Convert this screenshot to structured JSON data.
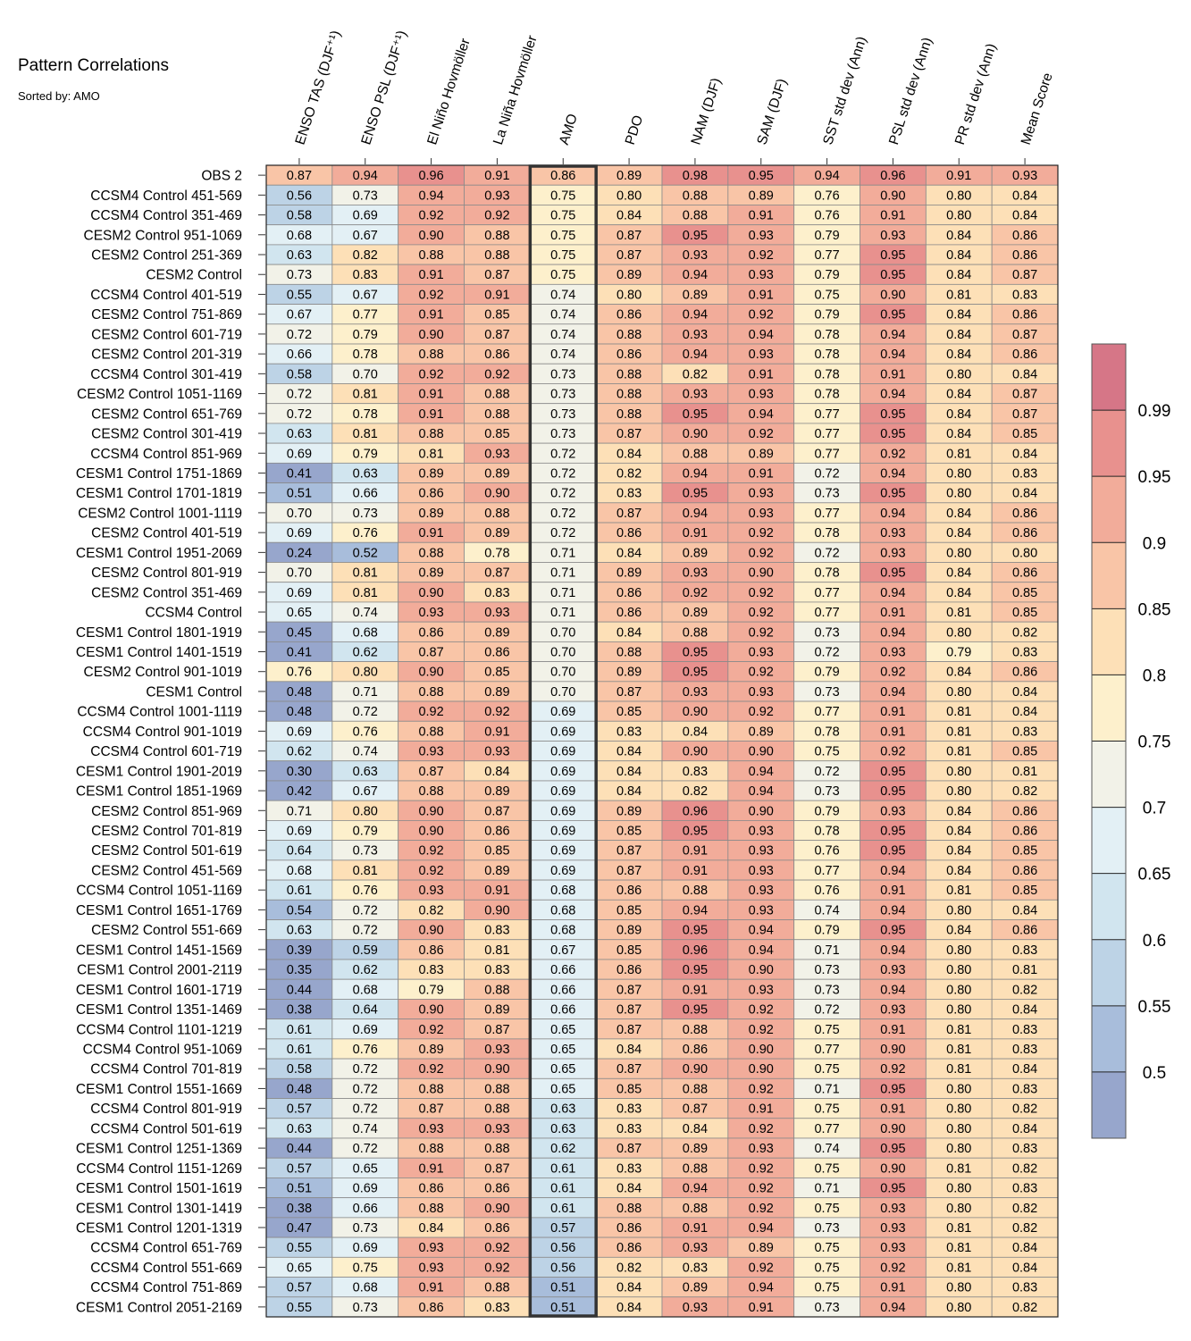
{
  "chart_data": {
    "type": "heatmap",
    "title": "Pattern Correlations",
    "subtitle": "Sorted by: AMO",
    "highlight_column": "AMO",
    "columns": [
      "ENSO TAS (DJF⁺¹)",
      "ENSO PSL (DJF⁺¹)",
      "El Niño Hovmöller",
      "La Niña Hovmöller",
      "AMO",
      "PDO",
      "NAM (DJF)",
      "SAM (DJF)",
      "SST std dev (Ann)",
      "PSL std dev (Ann)",
      "PR std dev (Ann)",
      "Mean Score"
    ],
    "rows": [
      {
        "label": "OBS 2",
        "values": [
          "0.87",
          "0.94",
          "0.96",
          "0.91",
          "0.86",
          "0.89",
          "0.98",
          "0.95",
          "0.94",
          "0.96",
          "0.91",
          "0.93"
        ]
      },
      {
        "label": "CCSM4 Control 451-569",
        "values": [
          "0.56",
          "0.73",
          "0.94",
          "0.93",
          "0.75",
          "0.80",
          "0.88",
          "0.89",
          "0.76",
          "0.90",
          "0.80",
          "0.84"
        ]
      },
      {
        "label": "CCSM4 Control 351-469",
        "values": [
          "0.58",
          "0.69",
          "0.92",
          "0.92",
          "0.75",
          "0.84",
          "0.88",
          "0.91",
          "0.76",
          "0.91",
          "0.80",
          "0.84"
        ]
      },
      {
        "label": "CESM2 Control 951-1069",
        "values": [
          "0.68",
          "0.67",
          "0.90",
          "0.88",
          "0.75",
          "0.87",
          "0.95",
          "0.93",
          "0.79",
          "0.93",
          "0.84",
          "0.86"
        ]
      },
      {
        "label": "CESM2 Control 251-369",
        "values": [
          "0.63",
          "0.82",
          "0.88",
          "0.88",
          "0.75",
          "0.87",
          "0.93",
          "0.92",
          "0.77",
          "0.95",
          "0.84",
          "0.86"
        ]
      },
      {
        "label": "CESM2 Control",
        "values": [
          "0.73",
          "0.83",
          "0.91",
          "0.87",
          "0.75",
          "0.89",
          "0.94",
          "0.93",
          "0.79",
          "0.95",
          "0.84",
          "0.87"
        ]
      },
      {
        "label": "CCSM4 Control 401-519",
        "values": [
          "0.55",
          "0.67",
          "0.92",
          "0.91",
          "0.74",
          "0.80",
          "0.89",
          "0.91",
          "0.75",
          "0.90",
          "0.81",
          "0.83"
        ]
      },
      {
        "label": "CESM2 Control 751-869",
        "values": [
          "0.67",
          "0.77",
          "0.91",
          "0.85",
          "0.74",
          "0.86",
          "0.94",
          "0.92",
          "0.79",
          "0.95",
          "0.84",
          "0.86"
        ]
      },
      {
        "label": "CESM2 Control 601-719",
        "values": [
          "0.72",
          "0.79",
          "0.90",
          "0.87",
          "0.74",
          "0.88",
          "0.93",
          "0.94",
          "0.78",
          "0.94",
          "0.84",
          "0.87"
        ]
      },
      {
        "label": "CESM2 Control 201-319",
        "values": [
          "0.66",
          "0.78",
          "0.88",
          "0.86",
          "0.74",
          "0.86",
          "0.94",
          "0.93",
          "0.78",
          "0.94",
          "0.84",
          "0.86"
        ]
      },
      {
        "label": "CCSM4 Control 301-419",
        "values": [
          "0.58",
          "0.70",
          "0.92",
          "0.92",
          "0.73",
          "0.88",
          "0.82",
          "0.91",
          "0.78",
          "0.91",
          "0.80",
          "0.84"
        ]
      },
      {
        "label": "CESM2 Control 1051-1169",
        "values": [
          "0.72",
          "0.81",
          "0.91",
          "0.88",
          "0.73",
          "0.88",
          "0.93",
          "0.93",
          "0.78",
          "0.94",
          "0.84",
          "0.87"
        ]
      },
      {
        "label": "CESM2 Control 651-769",
        "values": [
          "0.72",
          "0.78",
          "0.91",
          "0.88",
          "0.73",
          "0.88",
          "0.95",
          "0.94",
          "0.77",
          "0.95",
          "0.84",
          "0.87"
        ]
      },
      {
        "label": "CESM2 Control 301-419",
        "values": [
          "0.63",
          "0.81",
          "0.88",
          "0.85",
          "0.73",
          "0.87",
          "0.90",
          "0.92",
          "0.77",
          "0.95",
          "0.84",
          "0.85"
        ]
      },
      {
        "label": "CCSM4 Control 851-969",
        "values": [
          "0.69",
          "0.79",
          "0.81",
          "0.93",
          "0.72",
          "0.84",
          "0.88",
          "0.89",
          "0.77",
          "0.92",
          "0.81",
          "0.84"
        ]
      },
      {
        "label": "CESM1 Control 1751-1869",
        "values": [
          "0.41",
          "0.63",
          "0.89",
          "0.89",
          "0.72",
          "0.82",
          "0.94",
          "0.91",
          "0.72",
          "0.94",
          "0.80",
          "0.83"
        ]
      },
      {
        "label": "CESM1 Control 1701-1819",
        "values": [
          "0.51",
          "0.66",
          "0.86",
          "0.90",
          "0.72",
          "0.83",
          "0.95",
          "0.93",
          "0.73",
          "0.95",
          "0.80",
          "0.84"
        ]
      },
      {
        "label": "CESM2 Control 1001-1119",
        "values": [
          "0.70",
          "0.73",
          "0.89",
          "0.88",
          "0.72",
          "0.87",
          "0.94",
          "0.93",
          "0.77",
          "0.94",
          "0.84",
          "0.86"
        ]
      },
      {
        "label": "CESM2 Control 401-519",
        "values": [
          "0.69",
          "0.76",
          "0.91",
          "0.89",
          "0.72",
          "0.86",
          "0.91",
          "0.92",
          "0.78",
          "0.93",
          "0.84",
          "0.86"
        ]
      },
      {
        "label": "CESM1 Control 1951-2069",
        "values": [
          "0.24",
          "0.52",
          "0.88",
          "0.78",
          "0.71",
          "0.84",
          "0.89",
          "0.92",
          "0.72",
          "0.93",
          "0.80",
          "0.80"
        ]
      },
      {
        "label": "CESM2 Control 801-919",
        "values": [
          "0.70",
          "0.81",
          "0.89",
          "0.87",
          "0.71",
          "0.89",
          "0.93",
          "0.90",
          "0.78",
          "0.95",
          "0.84",
          "0.86"
        ]
      },
      {
        "label": "CESM2 Control 351-469",
        "values": [
          "0.69",
          "0.81",
          "0.90",
          "0.83",
          "0.71",
          "0.86",
          "0.92",
          "0.92",
          "0.77",
          "0.94",
          "0.84",
          "0.85"
        ]
      },
      {
        "label": "CCSM4 Control",
        "values": [
          "0.65",
          "0.74",
          "0.93",
          "0.93",
          "0.71",
          "0.86",
          "0.89",
          "0.92",
          "0.77",
          "0.91",
          "0.81",
          "0.85"
        ]
      },
      {
        "label": "CESM1 Control 1801-1919",
        "values": [
          "0.45",
          "0.68",
          "0.86",
          "0.89",
          "0.70",
          "0.84",
          "0.88",
          "0.92",
          "0.73",
          "0.94",
          "0.80",
          "0.82"
        ]
      },
      {
        "label": "CESM1 Control 1401-1519",
        "values": [
          "0.41",
          "0.62",
          "0.87",
          "0.86",
          "0.70",
          "0.88",
          "0.95",
          "0.93",
          "0.72",
          "0.93",
          "0.79",
          "0.83"
        ]
      },
      {
        "label": "CESM2 Control 901-1019",
        "values": [
          "0.76",
          "0.80",
          "0.90",
          "0.85",
          "0.70",
          "0.89",
          "0.95",
          "0.92",
          "0.79",
          "0.92",
          "0.84",
          "0.86"
        ]
      },
      {
        "label": "CESM1 Control",
        "values": [
          "0.48",
          "0.71",
          "0.88",
          "0.89",
          "0.70",
          "0.87",
          "0.93",
          "0.93",
          "0.73",
          "0.94",
          "0.80",
          "0.84"
        ]
      },
      {
        "label": "CCSM4 Control 1001-1119",
        "values": [
          "0.48",
          "0.72",
          "0.92",
          "0.92",
          "0.69",
          "0.85",
          "0.90",
          "0.92",
          "0.77",
          "0.91",
          "0.81",
          "0.84"
        ]
      },
      {
        "label": "CCSM4 Control 901-1019",
        "values": [
          "0.69",
          "0.76",
          "0.88",
          "0.91",
          "0.69",
          "0.83",
          "0.84",
          "0.89",
          "0.78",
          "0.91",
          "0.81",
          "0.83"
        ]
      },
      {
        "label": "CCSM4 Control 601-719",
        "values": [
          "0.62",
          "0.74",
          "0.93",
          "0.93",
          "0.69",
          "0.84",
          "0.90",
          "0.90",
          "0.75",
          "0.92",
          "0.81",
          "0.85"
        ]
      },
      {
        "label": "CESM1 Control 1901-2019",
        "values": [
          "0.30",
          "0.63",
          "0.87",
          "0.84",
          "0.69",
          "0.84",
          "0.83",
          "0.94",
          "0.72",
          "0.95",
          "0.80",
          "0.81"
        ]
      },
      {
        "label": "CESM1 Control 1851-1969",
        "values": [
          "0.42",
          "0.67",
          "0.88",
          "0.89",
          "0.69",
          "0.84",
          "0.82",
          "0.94",
          "0.73",
          "0.95",
          "0.80",
          "0.82"
        ]
      },
      {
        "label": "CESM2 Control 851-969",
        "values": [
          "0.71",
          "0.80",
          "0.90",
          "0.87",
          "0.69",
          "0.89",
          "0.96",
          "0.90",
          "0.79",
          "0.93",
          "0.84",
          "0.86"
        ]
      },
      {
        "label": "CESM2 Control 701-819",
        "values": [
          "0.69",
          "0.79",
          "0.90",
          "0.86",
          "0.69",
          "0.85",
          "0.95",
          "0.93",
          "0.78",
          "0.95",
          "0.84",
          "0.86"
        ]
      },
      {
        "label": "CESM2 Control 501-619",
        "values": [
          "0.64",
          "0.73",
          "0.92",
          "0.85",
          "0.69",
          "0.87",
          "0.91",
          "0.93",
          "0.76",
          "0.95",
          "0.84",
          "0.85"
        ]
      },
      {
        "label": "CESM2 Control 451-569",
        "values": [
          "0.68",
          "0.81",
          "0.92",
          "0.89",
          "0.69",
          "0.87",
          "0.91",
          "0.93",
          "0.77",
          "0.94",
          "0.84",
          "0.86"
        ]
      },
      {
        "label": "CCSM4 Control 1051-1169",
        "values": [
          "0.61",
          "0.76",
          "0.93",
          "0.91",
          "0.68",
          "0.86",
          "0.88",
          "0.93",
          "0.76",
          "0.91",
          "0.81",
          "0.85"
        ]
      },
      {
        "label": "CESM1 Control 1651-1769",
        "values": [
          "0.54",
          "0.72",
          "0.82",
          "0.90",
          "0.68",
          "0.85",
          "0.94",
          "0.93",
          "0.74",
          "0.94",
          "0.80",
          "0.84"
        ]
      },
      {
        "label": "CESM2 Control 551-669",
        "values": [
          "0.63",
          "0.72",
          "0.90",
          "0.83",
          "0.68",
          "0.89",
          "0.95",
          "0.94",
          "0.79",
          "0.95",
          "0.84",
          "0.86"
        ]
      },
      {
        "label": "CESM1 Control 1451-1569",
        "values": [
          "0.39",
          "0.59",
          "0.86",
          "0.81",
          "0.67",
          "0.85",
          "0.96",
          "0.94",
          "0.71",
          "0.94",
          "0.80",
          "0.83"
        ]
      },
      {
        "label": "CESM1 Control 2001-2119",
        "values": [
          "0.35",
          "0.62",
          "0.83",
          "0.83",
          "0.66",
          "0.86",
          "0.95",
          "0.90",
          "0.73",
          "0.93",
          "0.80",
          "0.81"
        ]
      },
      {
        "label": "CESM1 Control 1601-1719",
        "values": [
          "0.44",
          "0.68",
          "0.79",
          "0.88",
          "0.66",
          "0.87",
          "0.91",
          "0.93",
          "0.73",
          "0.94",
          "0.80",
          "0.82"
        ]
      },
      {
        "label": "CESM1 Control 1351-1469",
        "values": [
          "0.38",
          "0.64",
          "0.90",
          "0.89",
          "0.66",
          "0.87",
          "0.95",
          "0.92",
          "0.72",
          "0.93",
          "0.80",
          "0.84"
        ]
      },
      {
        "label": "CCSM4 Control 1101-1219",
        "values": [
          "0.61",
          "0.69",
          "0.92",
          "0.87",
          "0.65",
          "0.87",
          "0.88",
          "0.92",
          "0.75",
          "0.91",
          "0.81",
          "0.83"
        ]
      },
      {
        "label": "CCSM4 Control 951-1069",
        "values": [
          "0.61",
          "0.76",
          "0.89",
          "0.93",
          "0.65",
          "0.84",
          "0.86",
          "0.90",
          "0.77",
          "0.90",
          "0.81",
          "0.83"
        ]
      },
      {
        "label": "CCSM4 Control 701-819",
        "values": [
          "0.58",
          "0.72",
          "0.92",
          "0.90",
          "0.65",
          "0.87",
          "0.90",
          "0.90",
          "0.75",
          "0.92",
          "0.81",
          "0.84"
        ]
      },
      {
        "label": "CESM1 Control 1551-1669",
        "values": [
          "0.48",
          "0.72",
          "0.88",
          "0.88",
          "0.65",
          "0.85",
          "0.88",
          "0.92",
          "0.71",
          "0.95",
          "0.80",
          "0.83"
        ]
      },
      {
        "label": "CCSM4 Control 801-919",
        "values": [
          "0.57",
          "0.72",
          "0.87",
          "0.88",
          "0.63",
          "0.83",
          "0.87",
          "0.91",
          "0.75",
          "0.91",
          "0.80",
          "0.82"
        ]
      },
      {
        "label": "CCSM4 Control 501-619",
        "values": [
          "0.63",
          "0.74",
          "0.93",
          "0.93",
          "0.63",
          "0.83",
          "0.84",
          "0.92",
          "0.77",
          "0.90",
          "0.80",
          "0.84"
        ]
      },
      {
        "label": "CESM1 Control 1251-1369",
        "values": [
          "0.44",
          "0.72",
          "0.88",
          "0.88",
          "0.62",
          "0.87",
          "0.89",
          "0.93",
          "0.74",
          "0.95",
          "0.80",
          "0.83"
        ]
      },
      {
        "label": "CCSM4 Control 1151-1269",
        "values": [
          "0.57",
          "0.65",
          "0.91",
          "0.87",
          "0.61",
          "0.83",
          "0.88",
          "0.92",
          "0.75",
          "0.90",
          "0.81",
          "0.82"
        ]
      },
      {
        "label": "CESM1 Control 1501-1619",
        "values": [
          "0.51",
          "0.69",
          "0.86",
          "0.86",
          "0.61",
          "0.84",
          "0.94",
          "0.92",
          "0.71",
          "0.95",
          "0.80",
          "0.83"
        ]
      },
      {
        "label": "CESM1 Control 1301-1419",
        "values": [
          "0.38",
          "0.66",
          "0.88",
          "0.90",
          "0.61",
          "0.88",
          "0.88",
          "0.92",
          "0.75",
          "0.93",
          "0.80",
          "0.82"
        ]
      },
      {
        "label": "CESM1 Control 1201-1319",
        "values": [
          "0.47",
          "0.73",
          "0.84",
          "0.86",
          "0.57",
          "0.86",
          "0.91",
          "0.94",
          "0.73",
          "0.93",
          "0.81",
          "0.82"
        ]
      },
      {
        "label": "CCSM4 Control 651-769",
        "values": [
          "0.55",
          "0.69",
          "0.93",
          "0.92",
          "0.56",
          "0.86",
          "0.93",
          "0.89",
          "0.75",
          "0.93",
          "0.81",
          "0.84"
        ]
      },
      {
        "label": "CCSM4 Control 551-669",
        "values": [
          "0.65",
          "0.75",
          "0.93",
          "0.92",
          "0.56",
          "0.82",
          "0.83",
          "0.92",
          "0.75",
          "0.92",
          "0.81",
          "0.84"
        ]
      },
      {
        "label": "CCSM4 Control 751-869",
        "values": [
          "0.57",
          "0.68",
          "0.91",
          "0.88",
          "0.51",
          "0.84",
          "0.89",
          "0.94",
          "0.75",
          "0.91",
          "0.80",
          "0.83"
        ]
      },
      {
        "label": "CESM1 Control 2051-2169",
        "values": [
          "0.55",
          "0.73",
          "0.86",
          "0.83",
          "0.51",
          "0.84",
          "0.93",
          "0.91",
          "0.73",
          "0.94",
          "0.80",
          "0.82"
        ]
      }
    ],
    "colorbar": {
      "levels": [
        0.5,
        0.55,
        0.6,
        0.65,
        0.7,
        0.75,
        0.8,
        0.85,
        0.9,
        0.95,
        0.99
      ],
      "labels": [
        "0.5",
        "0.55",
        "0.6",
        "0.65",
        "0.7",
        "0.75",
        "0.8",
        "0.85",
        "0.9",
        "0.95",
        "0.99"
      ],
      "colors": [
        "#97a6cc",
        "#a8bddb",
        "#bdd3e6",
        "#d1e5ef",
        "#e3f0f5",
        "#f2f2e8",
        "#fdf0cc",
        "#fde0b7",
        "#f9c5a7",
        "#f2ac9a",
        "#e8918e",
        "#d67687"
      ]
    }
  }
}
